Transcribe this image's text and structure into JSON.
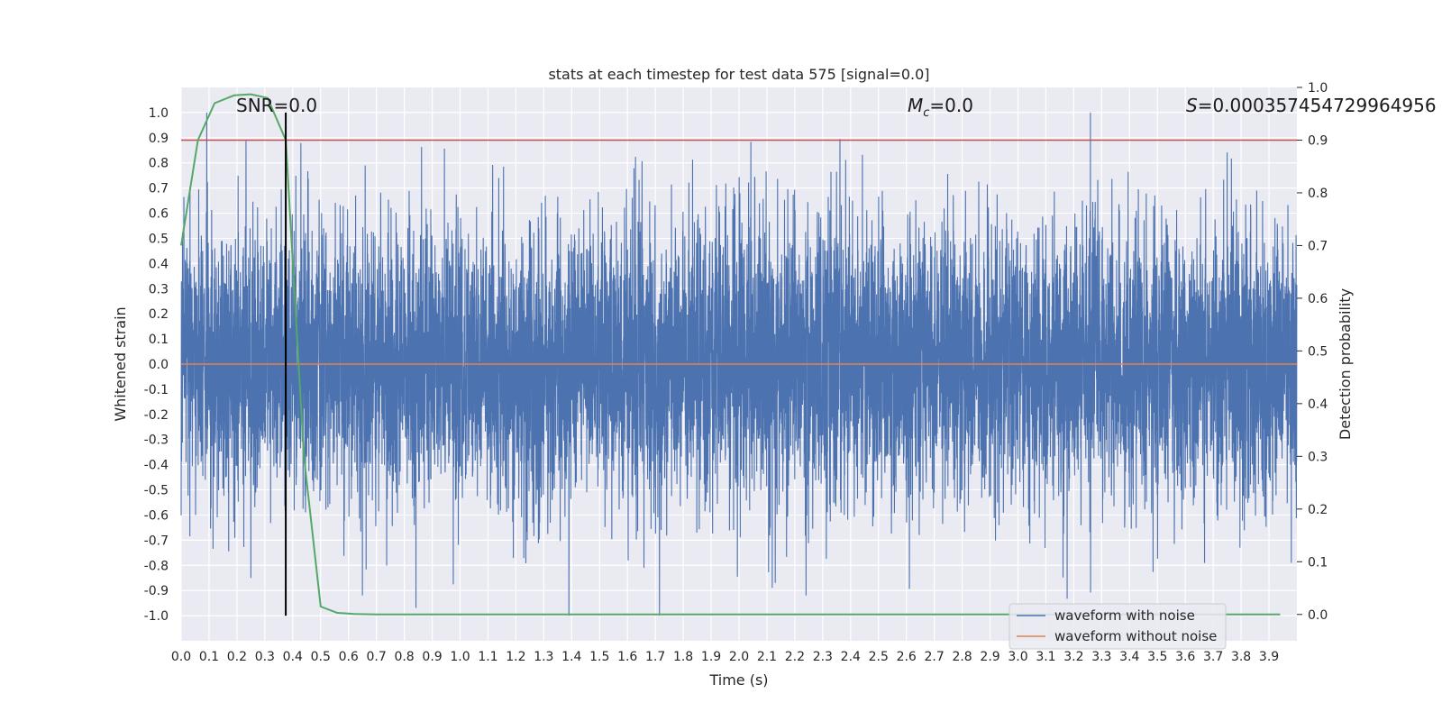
{
  "chart_data": {
    "type": "line",
    "title": "stats at each timestep for test data 575 [signal=0.0]",
    "xlabel": "Time (s)",
    "ylabel": "Whitened strain",
    "y2label": "Detection probability",
    "xlim": [
      0.0,
      4.0
    ],
    "ylim": [
      -1.1,
      1.1
    ],
    "y2lim": [
      -0.05,
      1.0
    ],
    "grid": true,
    "x_ticks": [
      "0.0",
      "0.1",
      "0.2",
      "0.3",
      "0.4",
      "0.5",
      "0.6",
      "0.7",
      "0.8",
      "0.9",
      "1.0",
      "1.1",
      "1.2",
      "1.3",
      "1.4",
      "1.5",
      "1.6",
      "1.7",
      "1.8",
      "1.9",
      "2.0",
      "2.1",
      "2.2",
      "2.3",
      "2.4",
      "2.5",
      "2.6",
      "2.7",
      "2.8",
      "2.9",
      "3.0",
      "3.1",
      "3.2",
      "3.3",
      "3.4",
      "3.5",
      "3.6",
      "3.7",
      "3.8",
      "3.9"
    ],
    "y_ticks": [
      "1.0",
      "0.9",
      "0.8",
      "0.7",
      "0.6",
      "0.5",
      "0.4",
      "0.3",
      "0.2",
      "0.1",
      "0.0",
      "-0.1",
      "-0.2",
      "-0.3",
      "-0.4",
      "-0.5",
      "-0.6",
      "-0.7",
      "-0.8",
      "-0.9",
      "-1.0"
    ],
    "y2_ticks": [
      "1.0",
      "0.9",
      "0.8",
      "0.7",
      "0.6",
      "0.5",
      "0.4",
      "0.3",
      "0.2",
      "0.1",
      "0.0"
    ],
    "annotations": {
      "snr": "SNR=0.0",
      "mc_symbol": "M",
      "mc_sub": "c",
      "mc_value": "=0.0",
      "s_symbol": "S",
      "s_value": "=0.000357454729964956"
    },
    "series": [
      {
        "name": "waveform with noise",
        "color": "#4c72b0",
        "axis": "left",
        "sample_rate": 2048,
        "amplitude_envelope": 0.5,
        "max_value": 1.0,
        "min_value": -1.0,
        "notable_peaks": [
          {
            "x": 3.26,
            "y": 1.0
          },
          {
            "x": 1.39,
            "y": -1.0
          },
          {
            "x": 2.24,
            "y": -0.92
          },
          {
            "x": 0.65,
            "y": -0.92
          },
          {
            "x": 2.13,
            "y": -0.87
          },
          {
            "x": 0.25,
            "y": -0.85
          }
        ]
      },
      {
        "name": "waveform without noise",
        "color": "#dd8452",
        "axis": "left",
        "values": "constant 0.0"
      },
      {
        "name": "detection probability",
        "color": "#55a868",
        "axis": "right",
        "x": [
          0.0,
          0.06,
          0.12,
          0.19,
          0.25,
          0.31,
          0.375,
          0.44,
          0.5,
          0.56,
          0.62,
          0.7,
          1.0,
          2.0,
          3.0,
          3.94
        ],
        "values": [
          0.7,
          0.9,
          0.97,
          0.985,
          0.987,
          0.98,
          0.9,
          0.3,
          0.015,
          0.003,
          0.001,
          0.0,
          0.0,
          0.0,
          0.0,
          0.0
        ]
      }
    ],
    "threshold": {
      "value": 0.9,
      "axis": "right",
      "color": "#c44e52"
    },
    "marker_time": {
      "value": 0.375,
      "color": "#000000"
    },
    "legend": {
      "location": "lower-right",
      "entries": [
        {
          "label": "waveform with noise",
          "color": "#4c72b0"
        },
        {
          "label": "waveform without noise",
          "color": "#dd8452"
        }
      ]
    }
  }
}
